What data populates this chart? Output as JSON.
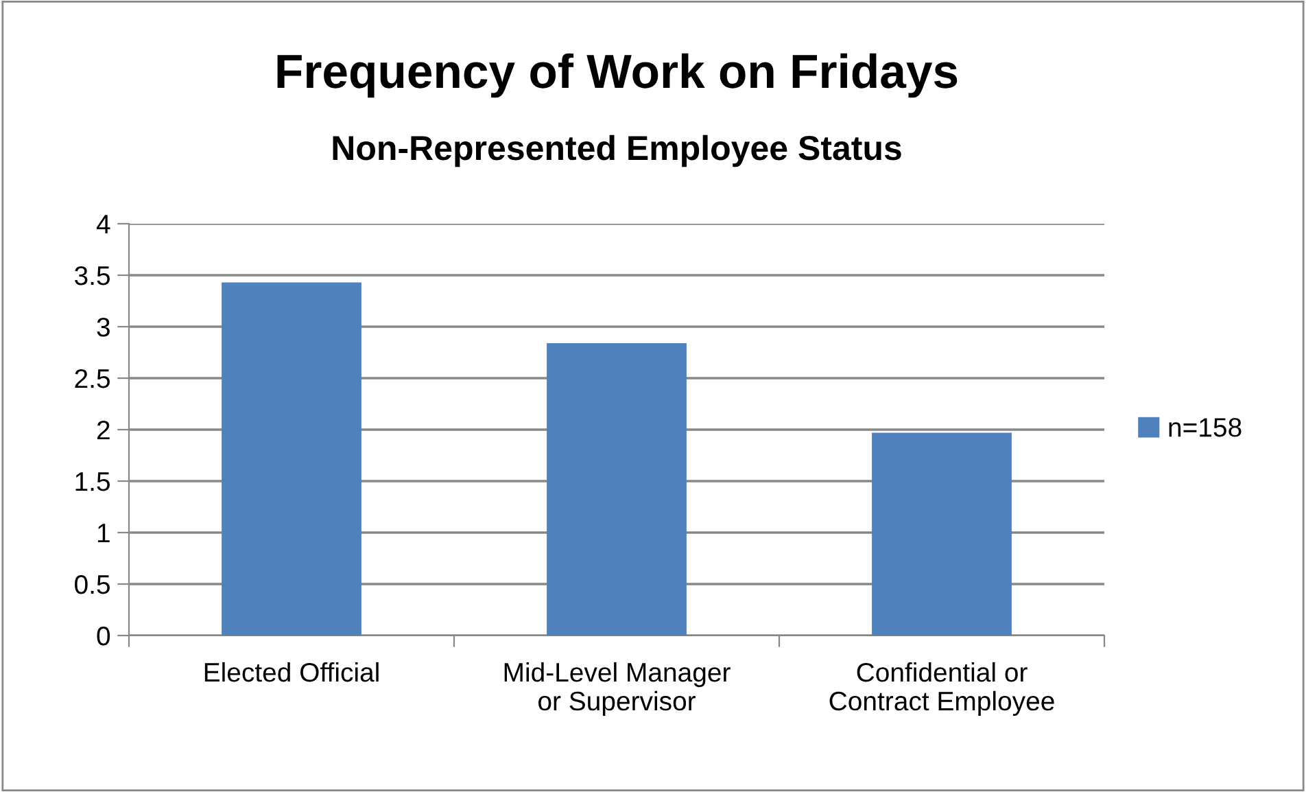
{
  "chart_data": {
    "type": "bar",
    "title": "Frequency of Work on Fridays",
    "subtitle": "Non-Represented Employee Status",
    "categories": [
      "Elected Official",
      "Mid-Level Manager\nor Supervisor",
      "Confidential or\nContract Employee"
    ],
    "series": [
      {
        "name": "n=158",
        "color": "#4f81bd",
        "values": [
          3.43,
          2.84,
          1.97
        ]
      }
    ],
    "ylim": [
      0,
      4
    ],
    "yticks": [
      0,
      0.5,
      1,
      1.5,
      2,
      2.5,
      3,
      3.5,
      4
    ],
    "grid": "y",
    "legend": "right"
  }
}
